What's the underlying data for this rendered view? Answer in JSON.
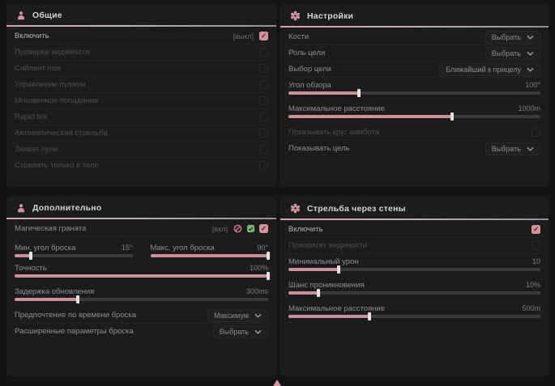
{
  "ui": {
    "accent": "#d0949a",
    "green": "#79b472",
    "footer": {
      "scroll_indicator": "up-triangle"
    }
  },
  "panels": [
    {
      "id": "general",
      "title": "Общие",
      "icon": "person",
      "rows": [
        {
          "type": "toggle",
          "label": "Включить",
          "hint": "[выкл]",
          "checked": true,
          "enabled": true,
          "bright": true
        },
        {
          "type": "toggle",
          "label": "Проверка видимости",
          "checked": false,
          "enabled": false
        },
        {
          "type": "toggle",
          "label": "Сайлент нож",
          "checked": false,
          "enabled": false
        },
        {
          "type": "toggle",
          "label": "Управление пулями",
          "checked": false,
          "enabled": false
        },
        {
          "type": "toggle",
          "label": "Мгновенное попадание",
          "checked": false,
          "enabled": false
        },
        {
          "type": "toggle",
          "label": "Rapid fire",
          "checked": false,
          "enabled": false
        },
        {
          "type": "toggle",
          "label": "Автоматическая стрельба",
          "checked": false,
          "enabled": false
        },
        {
          "type": "toggle",
          "label": "Захват пули",
          "checked": false,
          "enabled": false
        },
        {
          "type": "toggle",
          "label": "Стрелять только в тело",
          "checked": false,
          "enabled": false
        }
      ]
    },
    {
      "id": "settings",
      "title": "Настройки",
      "icon": "gear",
      "rows": [
        {
          "type": "select",
          "label": "Кости",
          "value": "Выбрать",
          "enabled": true
        },
        {
          "type": "select",
          "label": "Роль цели",
          "value": "Выбрать",
          "enabled": true
        },
        {
          "type": "select",
          "label": "Выбор цели",
          "value": "Ближайший к прицелу",
          "enabled": true
        },
        {
          "type": "slider",
          "label": "Угол обзора",
          "value": "100°",
          "fill": 28,
          "enabled": true
        },
        {
          "type": "slider",
          "label": "Максимальное расстояние",
          "value": "1000m",
          "fill": 65,
          "enabled": true
        },
        {
          "type": "toggle",
          "label": "Показывать круг аимбота",
          "checked": false,
          "enabled": false
        },
        {
          "type": "select",
          "label": "Показывать цель",
          "value": "Выбрать",
          "enabled": true
        }
      ]
    },
    {
      "id": "additional",
      "title": "Дополнительно",
      "icon": "person",
      "rows": [
        {
          "type": "toggle",
          "label": "Магическая граната",
          "hint": "[вкл]",
          "icons": [
            "eye-off",
            "check-green"
          ],
          "checked": true,
          "enabled": true
        },
        {
          "type": "sliders2",
          "items": [
            {
              "label": "Мин. угол броска",
              "value": "15°",
              "fill": 14
            },
            {
              "label": "Макс. угол броска",
              "value": "90°",
              "fill": 100
            }
          ]
        },
        {
          "type": "slider",
          "label": "Точность",
          "value": "100%",
          "fill": 100,
          "enabled": true
        },
        {
          "type": "slider",
          "label": "Задержка обновления",
          "value": "300ms",
          "fill": 25,
          "enabled": true
        },
        {
          "type": "select",
          "label": "Предпочтение по времени броска",
          "value": "Максимум",
          "enabled": true
        },
        {
          "type": "select",
          "label": "Расширенные параметры броска",
          "value": "Выбрать",
          "enabled": true
        }
      ]
    },
    {
      "id": "wallbang",
      "title": "Стрельба через стены",
      "icon": "gear",
      "rows": [
        {
          "type": "toggle",
          "label": "Включить",
          "checked": true,
          "enabled": true,
          "bright": true
        },
        {
          "type": "toggle",
          "label": "Приоритет видимости",
          "checked": false,
          "enabled": false
        },
        {
          "type": "slider",
          "label": "Минимальный урон",
          "value": "10",
          "fill": 20,
          "enabled": true
        },
        {
          "type": "slider",
          "label": "Шанс проникновения",
          "value": "10%",
          "fill": 12,
          "enabled": true
        },
        {
          "type": "slider",
          "label": "Максимальное расстояние",
          "value": "500m",
          "fill": 32,
          "enabled": true
        }
      ]
    }
  ]
}
